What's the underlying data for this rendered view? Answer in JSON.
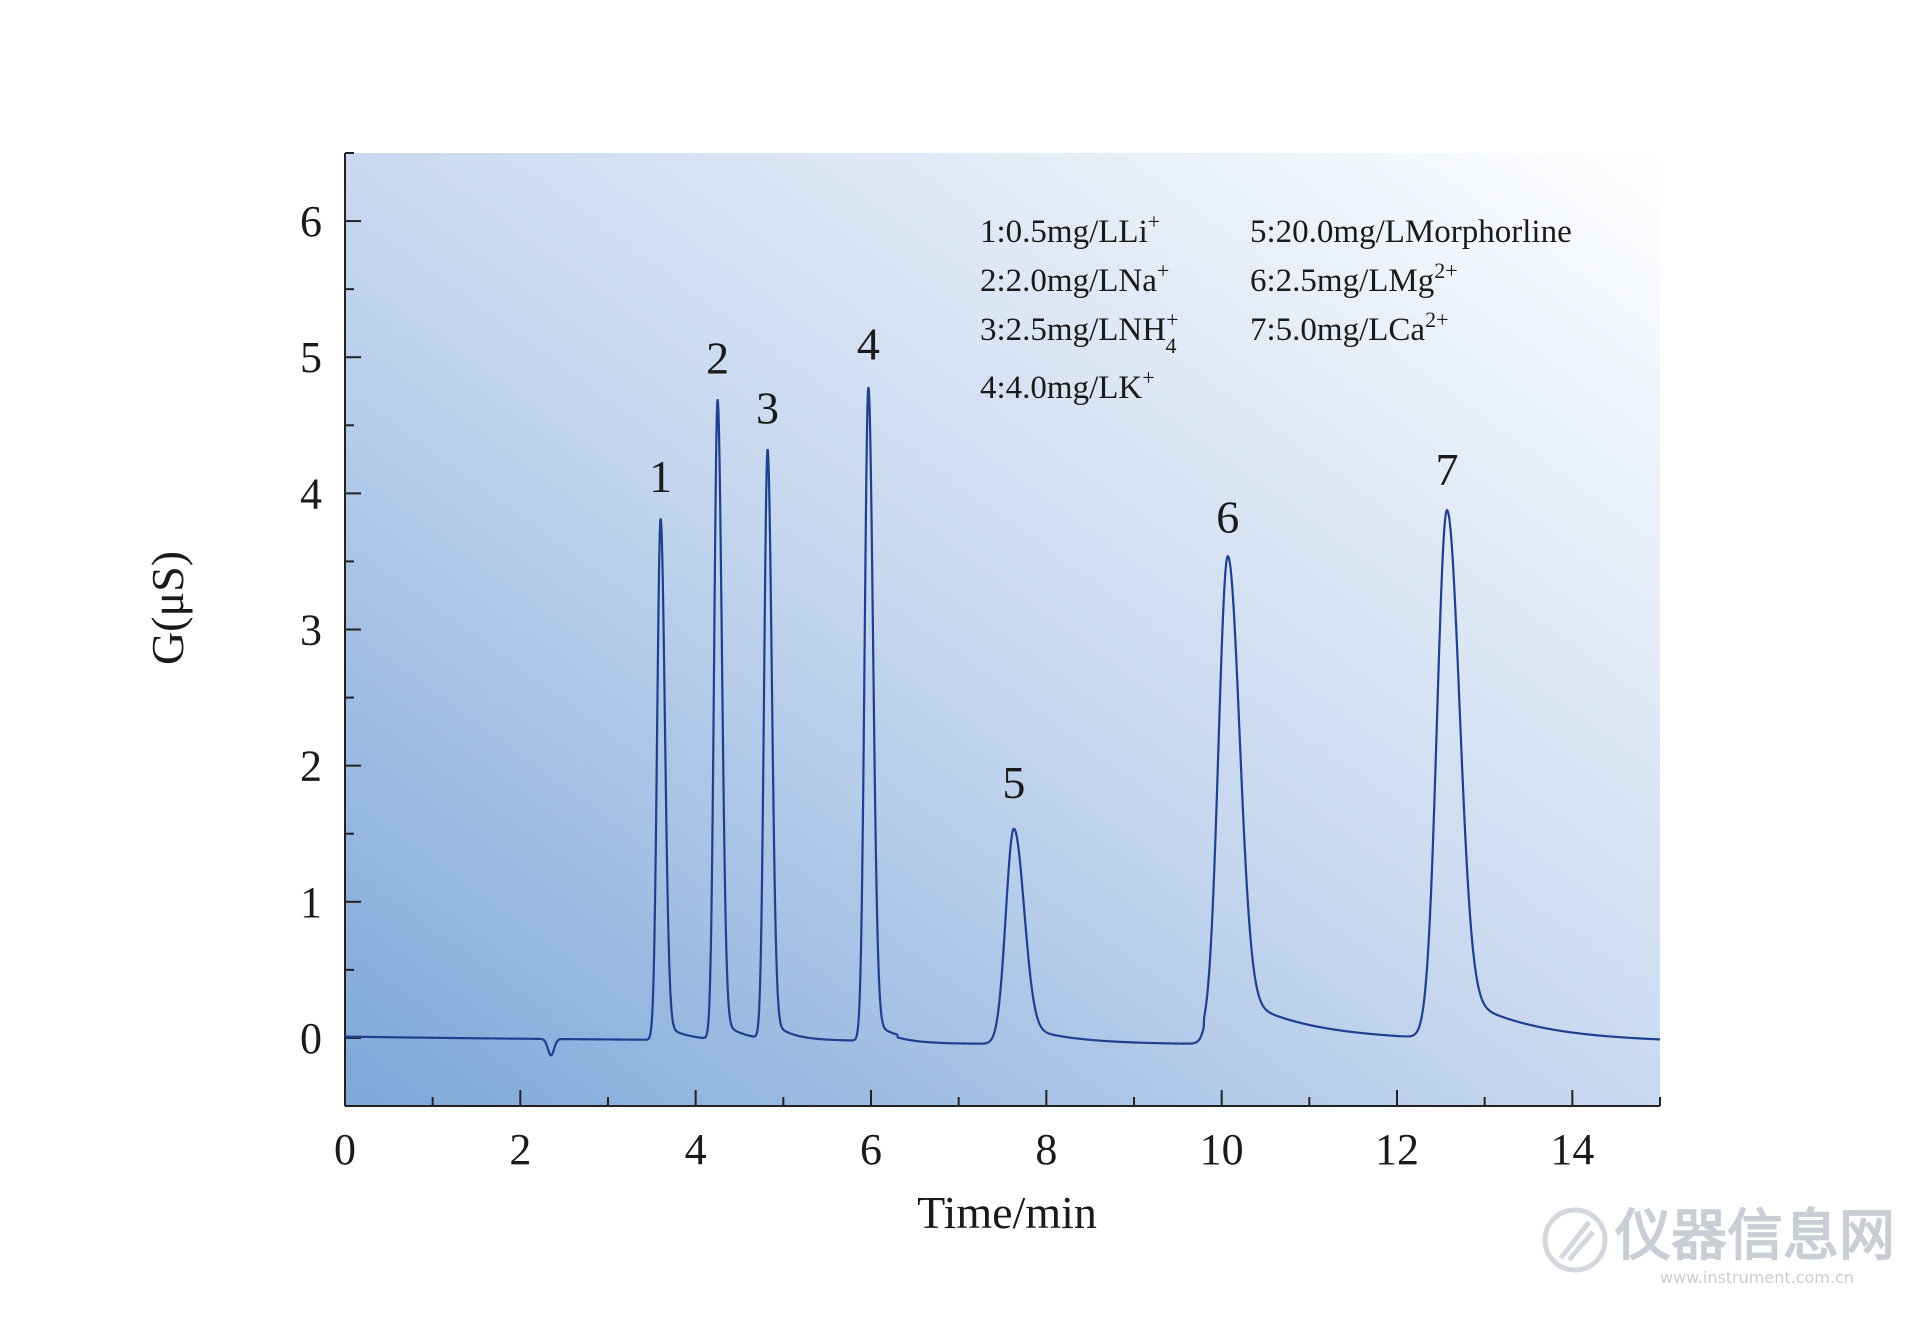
{
  "chart_data": {
    "type": "line",
    "title": "",
    "xlabel": "Time/min",
    "ylabel": "G(μS)",
    "xlim": [
      0,
      15
    ],
    "ylim": [
      -0.5,
      6.5
    ],
    "x_ticks": [
      "0",
      "2",
      "4",
      "6",
      "8",
      "10",
      "12",
      "14"
    ],
    "y_ticks": [
      "0",
      "1",
      "2",
      "3",
      "4",
      "5",
      "6"
    ],
    "baseline": 0,
    "dip": {
      "time": 2.35,
      "depth": -0.12
    },
    "series": [
      {
        "name": "chromatogram",
        "color": "#1f3f8f",
        "peaks": [
          {
            "label": "1",
            "time": 3.6,
            "height": 3.85
          },
          {
            "label": "2",
            "time": 4.25,
            "height": 4.72
          },
          {
            "label": "3",
            "time": 4.82,
            "height": 4.35
          },
          {
            "label": "4",
            "time": 5.97,
            "height": 4.82
          },
          {
            "label": "5",
            "time": 7.63,
            "height": 1.6
          },
          {
            "label": "6",
            "time": 10.07,
            "height": 3.55
          },
          {
            "label": "7",
            "time": 12.57,
            "height": 3.9
          }
        ]
      }
    ],
    "legend": {
      "placement": "top-right",
      "entries": [
        {
          "text": "1:0.5mg/LLi",
          "sup": "+",
          "sub": ""
        },
        {
          "text": "2:2.0mg/LNa",
          "sup": "+",
          "sub": ""
        },
        {
          "text": "3:2.5mg/LNH",
          "sup": "+",
          "sub": "4"
        },
        {
          "text": "4:4.0mg/LK",
          "sup": "+",
          "sub": ""
        },
        {
          "text": "5:20.0mg/LMorphorline",
          "sup": "",
          "sub": ""
        },
        {
          "text": "6:2.5mg/LMg",
          "sup": "2+",
          "sub": ""
        },
        {
          "text": "7:5.0mg/LCa",
          "sup": "2+",
          "sub": ""
        }
      ]
    }
  },
  "watermark": {
    "text": "仪器信息网",
    "url": "www.instrument.com.cn"
  },
  "colors": {
    "line": "#1f3f8f",
    "bg_dark": "#7ea7d8",
    "bg_light": "#ffffff",
    "axis": "#222222"
  }
}
